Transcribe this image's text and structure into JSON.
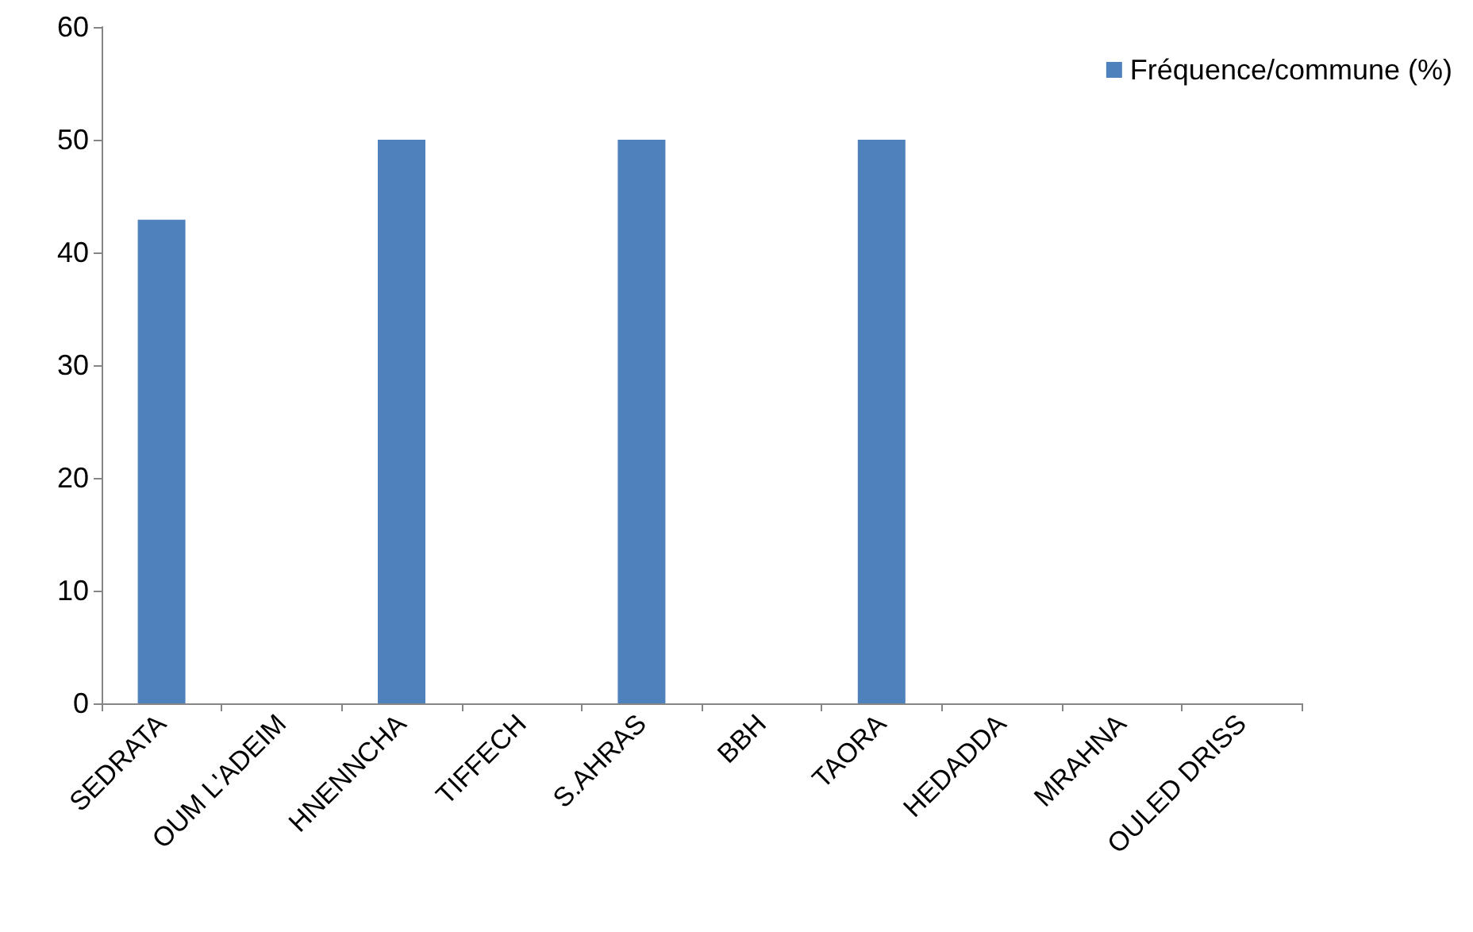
{
  "chart_data": {
    "type": "bar",
    "categories": [
      "SEDRATA",
      "OUM L'ADEIM",
      "HNENNCHA",
      "TIFFECH",
      "S.AHRAS",
      "BBH",
      "TAORA",
      "HEDADDA",
      "MRAHNA",
      "OULED DRISS"
    ],
    "series": [
      {
        "name": "Fréquence/commune (%)",
        "color": "#4f81bd",
        "values": [
          42.9,
          0,
          50,
          0,
          50,
          0,
          50,
          0,
          0,
          0
        ]
      }
    ],
    "ylim": [
      0,
      60
    ],
    "yticks": [
      0,
      10,
      20,
      30,
      40,
      50,
      60
    ],
    "grid": false,
    "legend": "top right"
  }
}
